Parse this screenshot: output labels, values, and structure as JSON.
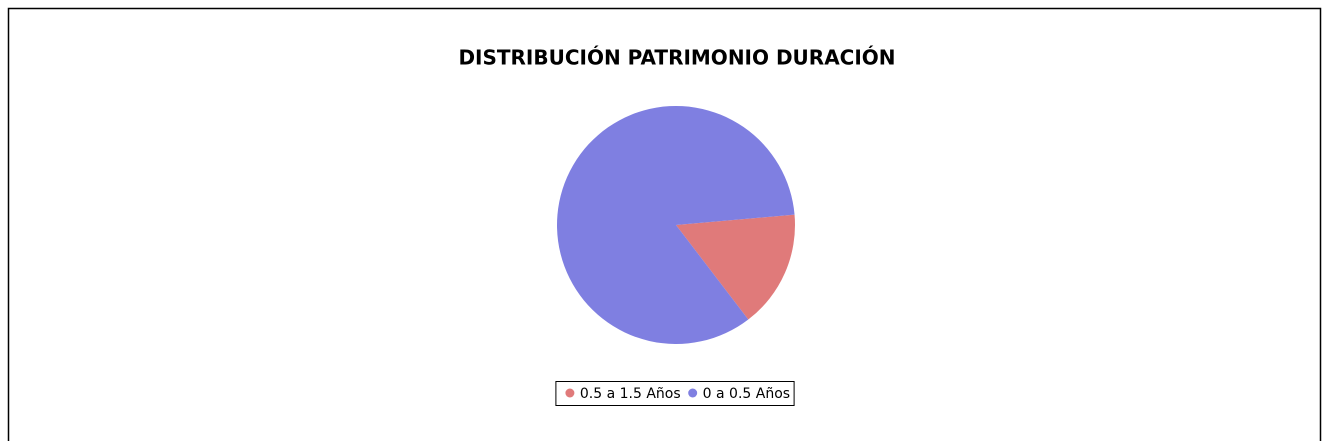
{
  "chart_data": {
    "type": "pie",
    "title": "DISTRIBUCIÓN PATRIMONIO DURACIÓN",
    "categories": [
      "0.5 a 1.5 Años",
      "0 a 0.5 Años"
    ],
    "values": [
      16,
      84
    ],
    "colors": [
      "#e07a7a",
      "#7f7fe1"
    ],
    "legend": "bottom"
  }
}
